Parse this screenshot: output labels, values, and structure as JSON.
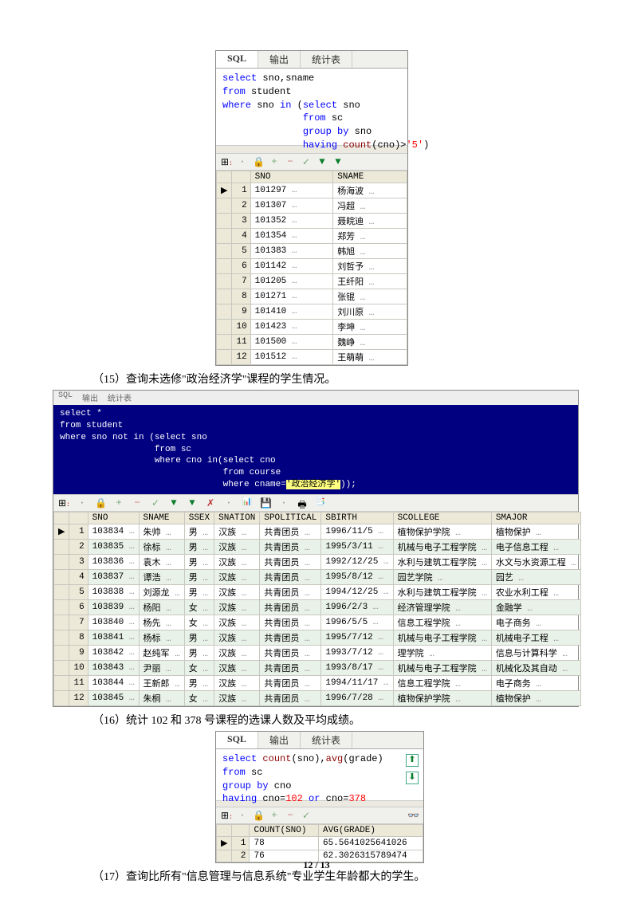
{
  "shot1": {
    "tabs": [
      "SQL",
      "输出",
      "统计表"
    ],
    "sql_lines": [
      {
        "t": "select",
        "c": "kw"
      },
      {
        "t": " sno,sname",
        "c": "ident"
      },
      {
        "br": 1
      },
      {
        "t": "from",
        "c": "kw"
      },
      {
        "t": " student",
        "c": "ident"
      },
      {
        "br": 1
      },
      {
        "t": "where",
        "c": "kw"
      },
      {
        "t": " sno ",
        "c": "ident"
      },
      {
        "t": "in",
        "c": "kw"
      },
      {
        "t": " (",
        "c": "ident"
      },
      {
        "t": "select",
        "c": "kw"
      },
      {
        "t": " sno",
        "c": "ident"
      },
      {
        "br": 1
      },
      {
        "t": "              ",
        "c": "ident"
      },
      {
        "t": "from",
        "c": "kw"
      },
      {
        "t": " sc",
        "c": "ident"
      },
      {
        "br": 1
      },
      {
        "t": "              ",
        "c": "ident"
      },
      {
        "t": "group by",
        "c": "kw"
      },
      {
        "t": " sno",
        "c": "ident"
      },
      {
        "br": 1
      },
      {
        "t": "              ",
        "c": "ident"
      },
      {
        "t": "having",
        "c": "kw"
      },
      {
        "t": " ",
        "c": "ident"
      },
      {
        "t": "count",
        "c": "fn"
      },
      {
        "t": "(cno)>",
        "c": "ident"
      },
      {
        "t": "'5'",
        "c": "str"
      },
      {
        "t": ")",
        "c": "ident"
      }
    ],
    "columns": [
      "SNO",
      "SNAME"
    ],
    "rows": [
      [
        "101297",
        "杨海波"
      ],
      [
        "101307",
        "冯超"
      ],
      [
        "101352",
        "聂皖迪"
      ],
      [
        "101354",
        "郑芳"
      ],
      [
        "101383",
        "韩旭"
      ],
      [
        "101142",
        "刘哲予"
      ],
      [
        "101205",
        "王纤阳"
      ],
      [
        "101271",
        "张锟"
      ],
      [
        "101410",
        "刘川原"
      ],
      [
        "101423",
        "李坤"
      ],
      [
        "101500",
        "魏峥"
      ],
      [
        "101512",
        "王萌萌"
      ]
    ]
  },
  "caption15": "（15）查询未选修\"政治经济学\"课程的学生情况。",
  "shot2": {
    "tabs_small": [
      "SQL",
      "输出",
      "统计表"
    ],
    "sql_lines": [
      "select *",
      "from student",
      "where sno not in (select sno",
      "                  from sc",
      "                  where cno in(select cno",
      "                               from course",
      "                               where cname='政治经济学'));"
    ],
    "columns": [
      "SNO",
      "SNAME",
      "SSEX",
      "SNATION",
      "SPOLITICAL",
      "SBIRTH",
      "SCOLLEGE",
      "SMAJOR"
    ],
    "rows": [
      [
        "103834",
        "朱帅",
        "男",
        "汉族",
        "共青团员",
        "1996/11/5",
        "植物保护学院",
        "植物保护"
      ],
      [
        "103835",
        "徐标",
        "男",
        "汉族",
        "共青团员",
        "1995/3/11",
        "机械与电子工程学院",
        "电子信息工程"
      ],
      [
        "103836",
        "袁木",
        "男",
        "汉族",
        "共青团员",
        "1992/12/25",
        "水利与建筑工程学院",
        "水文与水资源工程"
      ],
      [
        "103837",
        "谭浩",
        "男",
        "汉族",
        "共青团员",
        "1995/8/12",
        "园艺学院",
        "园艺"
      ],
      [
        "103838",
        "刘源龙",
        "男",
        "汉族",
        "共青团员",
        "1994/12/25",
        "水利与建筑工程学院",
        "农业水利工程"
      ],
      [
        "103839",
        "杨阳",
        "女",
        "汉族",
        "共青团员",
        "1996/2/3",
        "经济管理学院",
        "金融学"
      ],
      [
        "103840",
        "杨先",
        "女",
        "汉族",
        "共青团员",
        "1996/5/5",
        "信息工程学院",
        "电子商务"
      ],
      [
        "103841",
        "杨标",
        "男",
        "汉族",
        "共青团员",
        "1995/7/12",
        "机械与电子工程学院",
        "机械电子工程"
      ],
      [
        "103842",
        "赵纯军",
        "男",
        "汉族",
        "共青团员",
        "1993/7/12",
        "理学院",
        "信息与计算科学"
      ],
      [
        "103843",
        "尹丽",
        "女",
        "汉族",
        "共青团员",
        "1993/8/17",
        "机械与电子工程学院",
        "机械化及其自动"
      ],
      [
        "103844",
        "王新郎",
        "男",
        "汉族",
        "共青团员",
        "1994/11/17",
        "信息工程学院",
        "电子商务"
      ],
      [
        "103845",
        "朱桐",
        "女",
        "汉族",
        "共青团员",
        "1996/7/28",
        "植物保护学院",
        "植物保护"
      ]
    ]
  },
  "caption16": "（16）统计 102 和 378 号课程的选课人数及平均成绩。",
  "shot3": {
    "tabs": [
      "SQL",
      "输出",
      "统计表"
    ],
    "sql_lines": [
      {
        "t": "select",
        "c": "kw"
      },
      {
        "t": " ",
        "c": "ident"
      },
      {
        "t": "count",
        "c": "fn"
      },
      {
        "t": "(sno),",
        "c": "ident"
      },
      {
        "t": "avg",
        "c": "fn"
      },
      {
        "t": "(grade)",
        "c": "ident"
      },
      {
        "br": 1
      },
      {
        "t": "from",
        "c": "kw"
      },
      {
        "t": " sc",
        "c": "ident"
      },
      {
        "br": 1
      },
      {
        "t": "group by",
        "c": "kw"
      },
      {
        "t": " cno",
        "c": "ident"
      },
      {
        "br": 1
      },
      {
        "t": "having",
        "c": "kw"
      },
      {
        "t": " cno=",
        "c": "ident"
      },
      {
        "t": "102",
        "c": "num"
      },
      {
        "t": " ",
        "c": "ident"
      },
      {
        "t": "or",
        "c": "kw"
      },
      {
        "t": " cno=",
        "c": "ident"
      },
      {
        "t": "378",
        "c": "num"
      }
    ],
    "columns": [
      "COUNT(SNO)",
      "AVG(GRADE)"
    ],
    "rows": [
      [
        "78",
        "65.5641025641026"
      ],
      [
        "76",
        "62.3026315789474"
      ]
    ]
  },
  "caption17": "（17）查询比所有\"信息管理与信息系统\"专业学生年龄都大的学生。",
  "page_number": "12 / 13",
  "toolbar_icons": {
    "grid": "⊞",
    "lock": "🔒",
    "plus": "+",
    "minus": "−",
    "check": "✓",
    "down1": "▼",
    "down2": "▼",
    "x": "✗",
    "binoc": "👁"
  }
}
